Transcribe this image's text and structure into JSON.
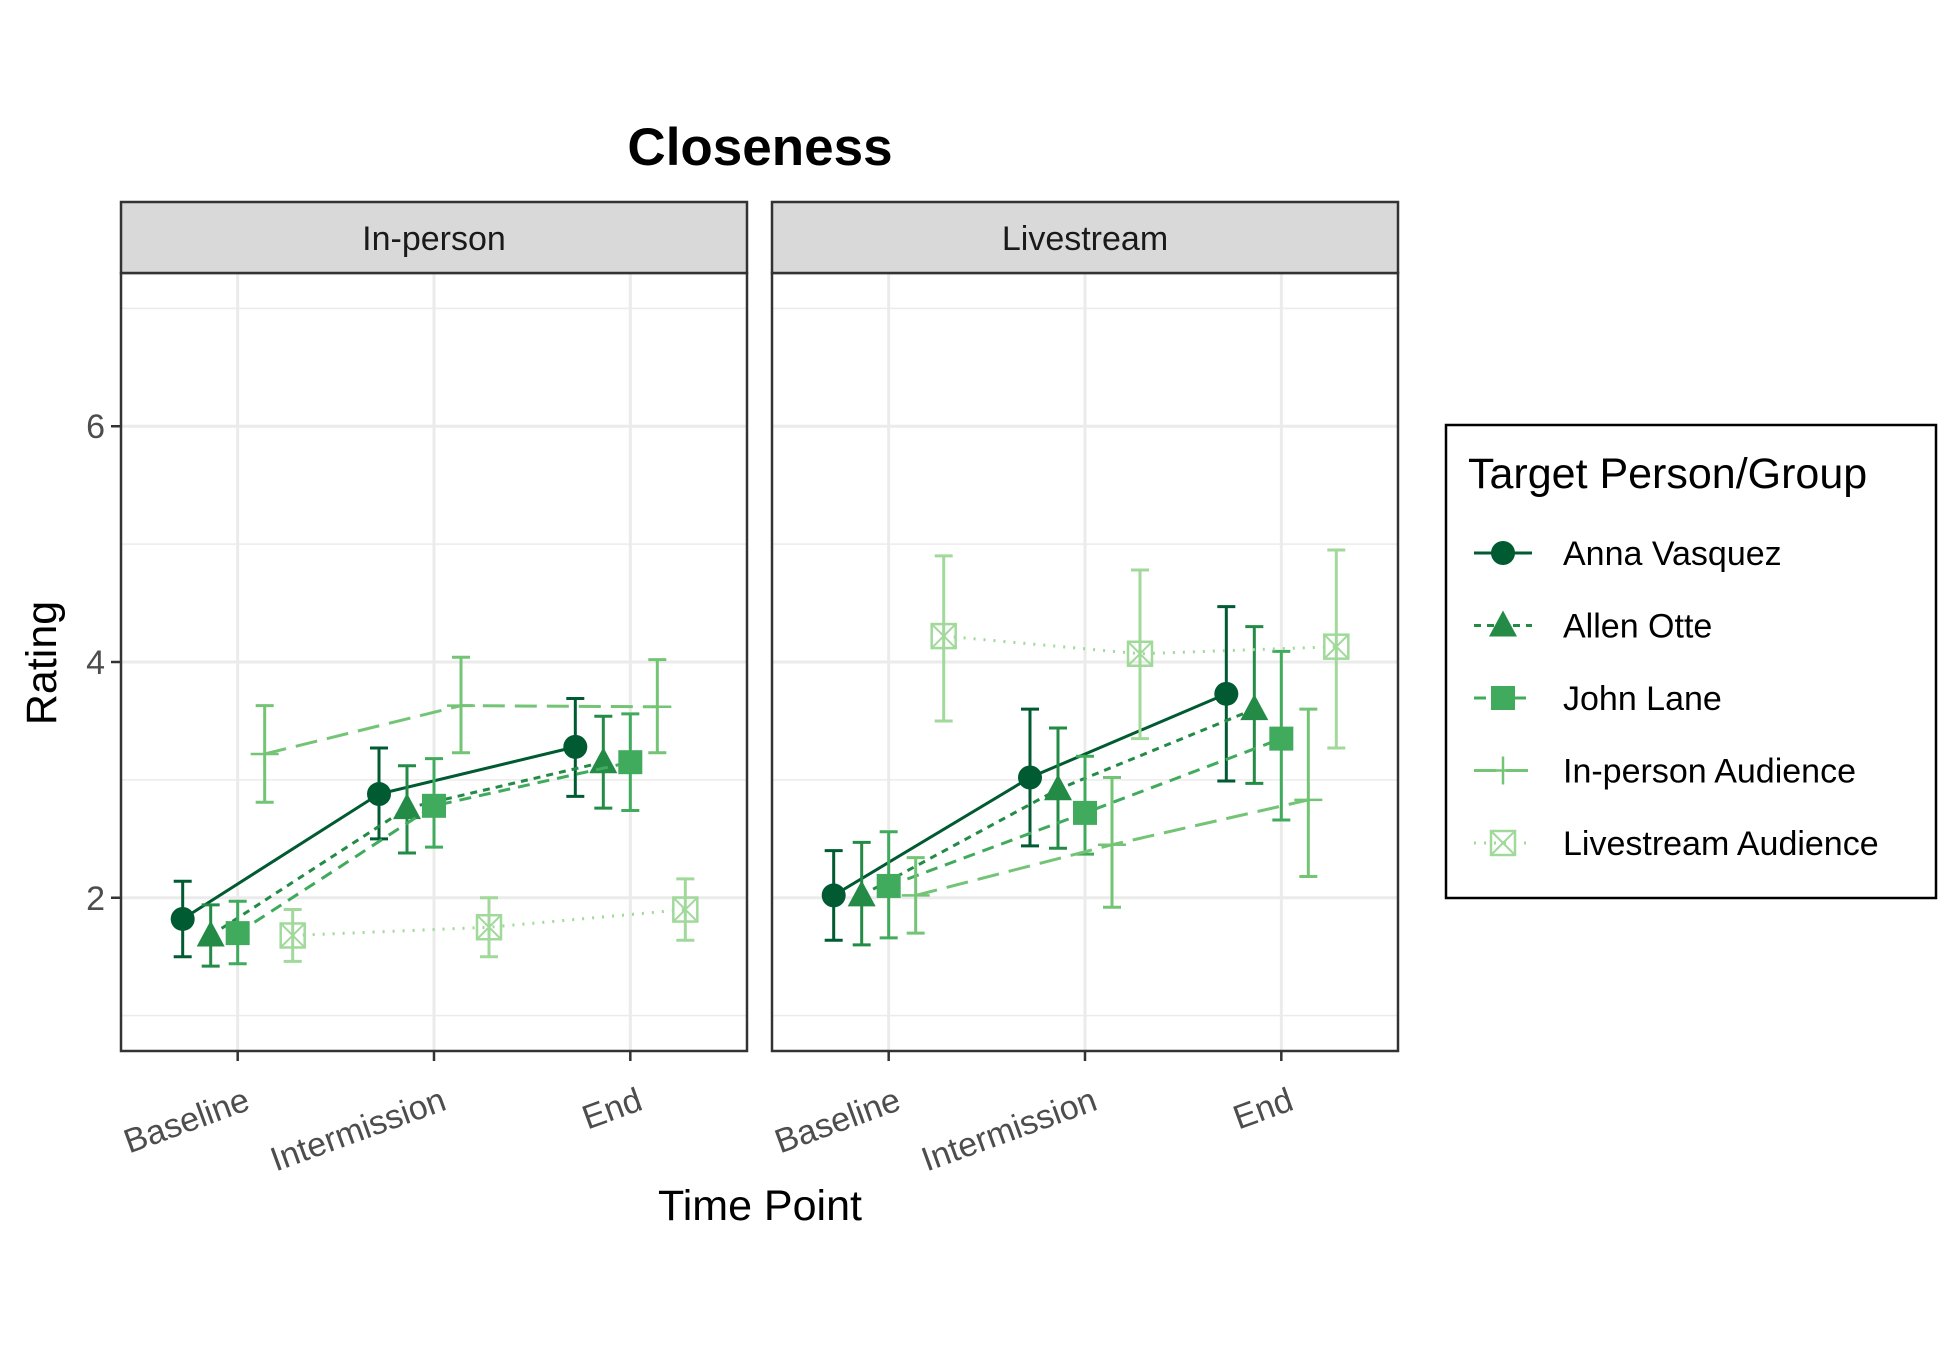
{
  "chart_data": {
    "type": "line",
    "title": "Closeness",
    "xlabel": "Time Point",
    "ylabel": "Rating",
    "categories": [
      "Baseline",
      "Intermission",
      "End"
    ],
    "ylim": [
      0.7,
      7.3
    ],
    "yticks": [
      2,
      4,
      6
    ],
    "grid": true,
    "error_bars": true,
    "legend": {
      "title": "Target Person/Group",
      "position": "right"
    },
    "series_styles": [
      {
        "name": "Anna Vasquez",
        "color": "#005a32",
        "marker": "circle",
        "dash": "solid"
      },
      {
        "name": "Allen Otte",
        "color": "#238b45",
        "marker": "triangle",
        "dash": "dashed-short"
      },
      {
        "name": "John Lane",
        "color": "#41ab5d",
        "marker": "square",
        "dash": "dashed"
      },
      {
        "name": "In-person Audience",
        "color": "#74c476",
        "marker": "plus",
        "dash": "longdash"
      },
      {
        "name": "Livestream Audience",
        "color": "#a1d99b",
        "marker": "boxed-x",
        "dash": "dotted"
      }
    ],
    "panels": [
      {
        "name": "In-person",
        "series": [
          {
            "name": "Anna Vasquez",
            "values": [
              1.82,
              2.88,
              3.28
            ],
            "lower": [
              1.5,
              2.5,
              2.86
            ],
            "upper": [
              2.14,
              3.27,
              3.69
            ]
          },
          {
            "name": "Allen Otte",
            "values": [
              1.68,
              2.76,
              3.15
            ],
            "lower": [
              1.42,
              2.38,
              2.76
            ],
            "upper": [
              1.94,
              3.12,
              3.54
            ]
          },
          {
            "name": "John Lane",
            "values": [
              1.7,
              2.78,
              3.15
            ],
            "lower": [
              1.44,
              2.43,
              2.74
            ],
            "upper": [
              1.97,
              3.18,
              3.56
            ]
          },
          {
            "name": "In-person Audience",
            "values": [
              3.22,
              3.63,
              3.62
            ],
            "lower": [
              2.81,
              3.23,
              3.23
            ],
            "upper": [
              3.63,
              4.04,
              4.02
            ]
          },
          {
            "name": "Livestream Audience",
            "values": [
              1.68,
              1.75,
              1.9
            ],
            "lower": [
              1.46,
              1.5,
              1.64
            ],
            "upper": [
              1.9,
              2.0,
              2.16
            ]
          }
        ]
      },
      {
        "name": "Livestream",
        "series": [
          {
            "name": "Anna Vasquez",
            "values": [
              2.02,
              3.02,
              3.73
            ],
            "lower": [
              1.64,
              2.44,
              2.99
            ],
            "upper": [
              2.4,
              3.6,
              4.47
            ]
          },
          {
            "name": "Allen Otte",
            "values": [
              2.02,
              2.92,
              3.6
            ],
            "lower": [
              1.6,
              2.42,
              2.97
            ],
            "upper": [
              2.47,
              3.44,
              4.3
            ]
          },
          {
            "name": "John Lane",
            "values": [
              2.1,
              2.72,
              3.35
            ],
            "lower": [
              1.66,
              2.37,
              2.66
            ],
            "upper": [
              2.56,
              3.2,
              4.09
            ]
          },
          {
            "name": "In-person Audience",
            "values": [
              2.02,
              2.45,
              2.83
            ],
            "lower": [
              1.7,
              1.92,
              2.18
            ],
            "upper": [
              2.34,
              3.02,
              3.6
            ]
          },
          {
            "name": "Livestream Audience",
            "values": [
              4.22,
              4.07,
              4.13
            ],
            "lower": [
              3.5,
              3.35,
              3.27
            ],
            "upper": [
              4.9,
              4.78,
              4.95
            ]
          }
        ]
      }
    ]
  }
}
